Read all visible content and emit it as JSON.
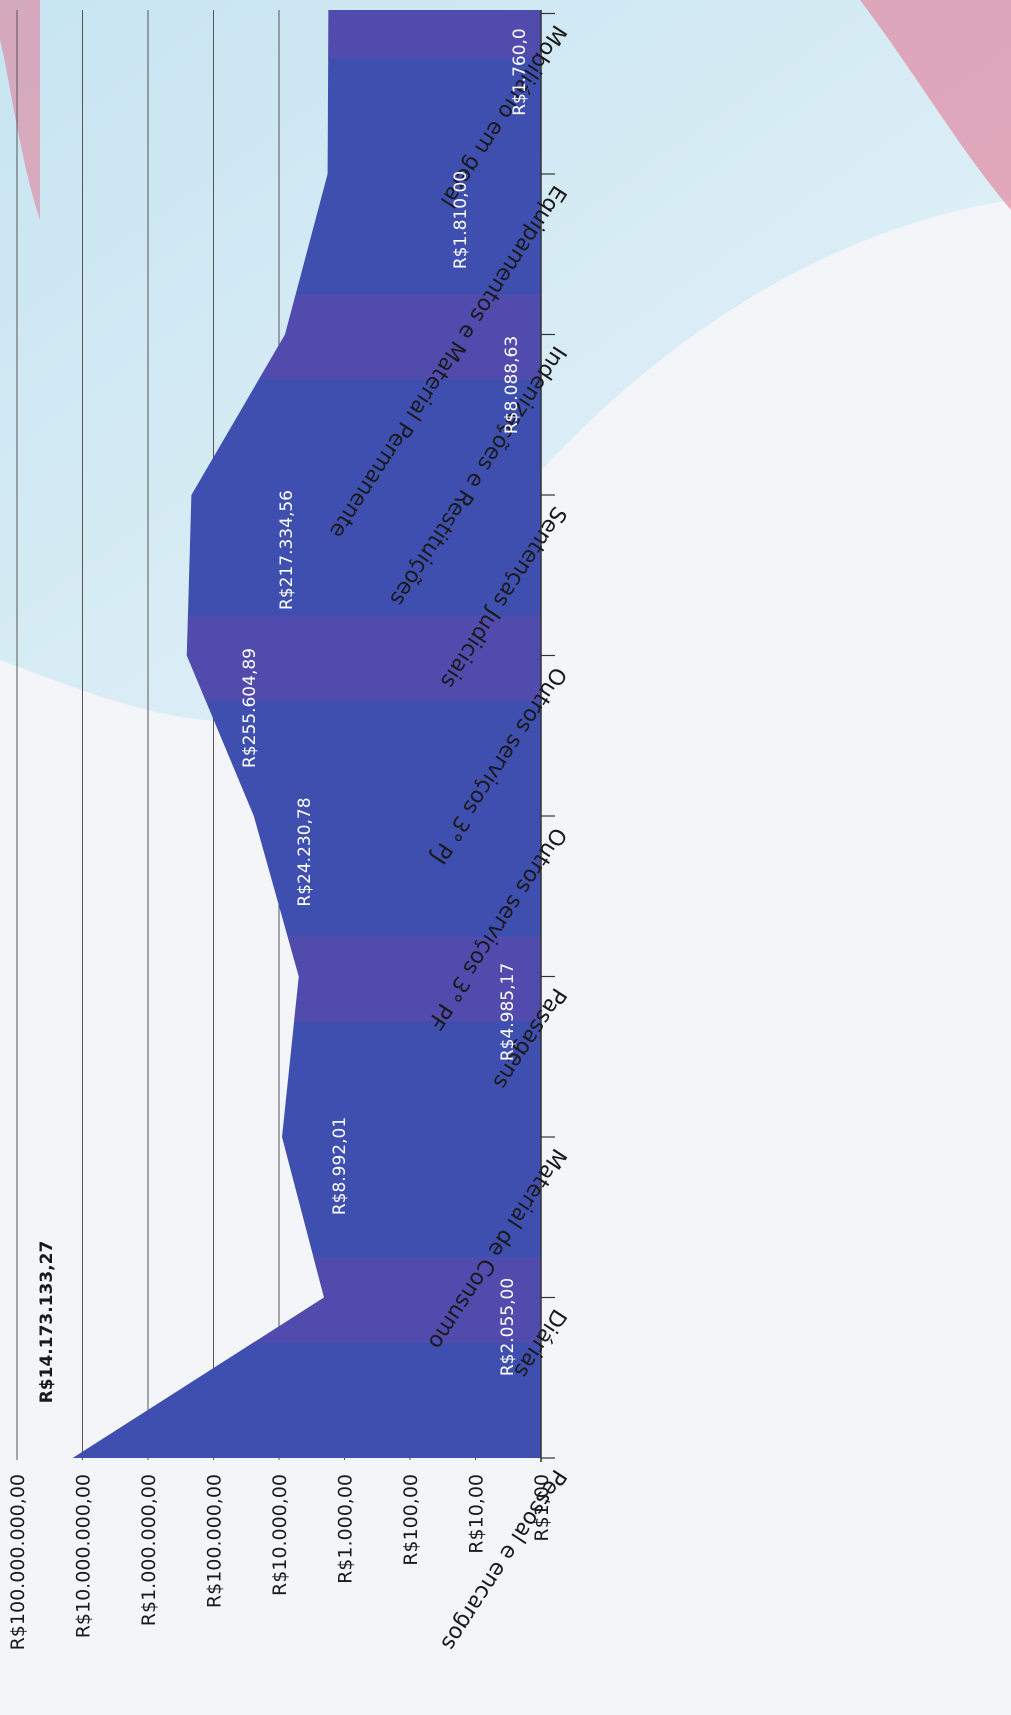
{
  "chart_data": {
    "type": "area",
    "scale": "log",
    "orientation": "rotated-90-clockwise",
    "grid": true,
    "categories": [
      "Pessoal e encargos",
      "Diárias",
      "Material de Consumo",
      "Passagens",
      "Outros serviços 3° PF",
      "Outros serviços 3° PJ",
      "Sentenças Judiciais",
      "Indenizações e Restituições",
      "Equipamentos e Material Permanente",
      "Mobiliário em geral"
    ],
    "values": [
      14173133.27,
      2055.0,
      8992.01,
      4985.17,
      24230.78,
      255604.89,
      217334.56,
      8088.63,
      1810.0,
      1760.0
    ],
    "data_labels": [
      "R$14.173.133,27",
      "R$2.055,00",
      "R$8.992,01",
      "R$4.985,17",
      "R$24.230,78",
      "R$255.604,89",
      "R$217.334,56",
      "R$8.088,63",
      "R$1.810,00",
      "R$1.760,0"
    ],
    "yticks": [
      1,
      10,
      100,
      1000,
      10000,
      100000,
      1000000,
      10000000,
      100000000
    ],
    "ytick_labels": [
      "R$1,00",
      "R$10,00",
      "R$100,00",
      "R$1.000,00",
      "R$10.000,00",
      "R$100.000,00",
      "R$1.000.000,00",
      "R$10.000.000,00",
      "R$100.000.000,00"
    ],
    "ylim": [
      1,
      100000000
    ],
    "colors": {
      "fill": "#3f4fb0",
      "band": "#6049ad",
      "grid": "#555555"
    }
  }
}
